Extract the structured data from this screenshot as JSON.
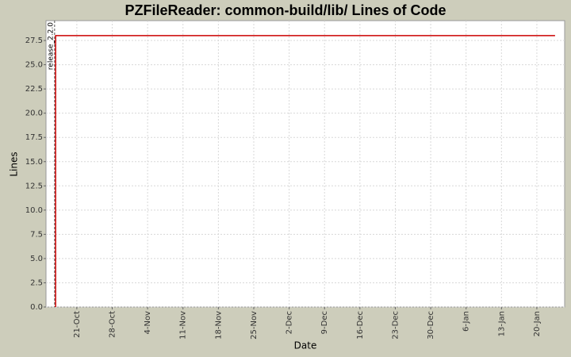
{
  "chart_data": {
    "type": "line",
    "title": "PZFileReader: common-build/lib/ Lines of Code",
    "x_label": "Date",
    "y_label": "Lines",
    "x": [
      -4.2,
      -4.2,
      94.6
    ],
    "series": [
      {
        "name": "Lines",
        "color": "#cc0000",
        "values": [
          0,
          28,
          28
        ]
      }
    ],
    "xlim": [
      -6.1,
      96.5
    ],
    "xticks": [
      {
        "value": 0,
        "label": "21-Oct"
      },
      {
        "value": 7,
        "label": "28-Oct"
      },
      {
        "value": 14,
        "label": "4-Nov"
      },
      {
        "value": 21,
        "label": "11-Nov"
      },
      {
        "value": 28,
        "label": "18-Nov"
      },
      {
        "value": 35,
        "label": "25-Nov"
      },
      {
        "value": 42,
        "label": "2-Dec"
      },
      {
        "value": 49,
        "label": "9-Dec"
      },
      {
        "value": 56,
        "label": "16-Dec"
      },
      {
        "value": 63,
        "label": "23-Dec"
      },
      {
        "value": 70,
        "label": "30-Dec"
      },
      {
        "value": 77,
        "label": "6-Jan"
      },
      {
        "value": 84,
        "label": "13-Jan"
      },
      {
        "value": 91,
        "label": "20-Jan"
      }
    ],
    "ylim": [
      0,
      29.55
    ],
    "yticks": [
      {
        "value": 0,
        "label": "0.0"
      },
      {
        "value": 2.5,
        "label": "2.5"
      },
      {
        "value": 5,
        "label": "5.0"
      },
      {
        "value": 7.5,
        "label": "7.5"
      },
      {
        "value": 10,
        "label": "10.0"
      },
      {
        "value": 12.5,
        "label": "12.5"
      },
      {
        "value": 15,
        "label": "15.0"
      },
      {
        "value": 17.5,
        "label": "17.5"
      },
      {
        "value": 20,
        "label": "20.0"
      },
      {
        "value": 22.5,
        "label": "22.5"
      },
      {
        "value": 25,
        "label": "25.0"
      },
      {
        "value": 27.5,
        "label": "27.5"
      }
    ],
    "grid": true,
    "annotations": [
      {
        "x": -4.4,
        "text": "release_2.2.0"
      }
    ]
  }
}
